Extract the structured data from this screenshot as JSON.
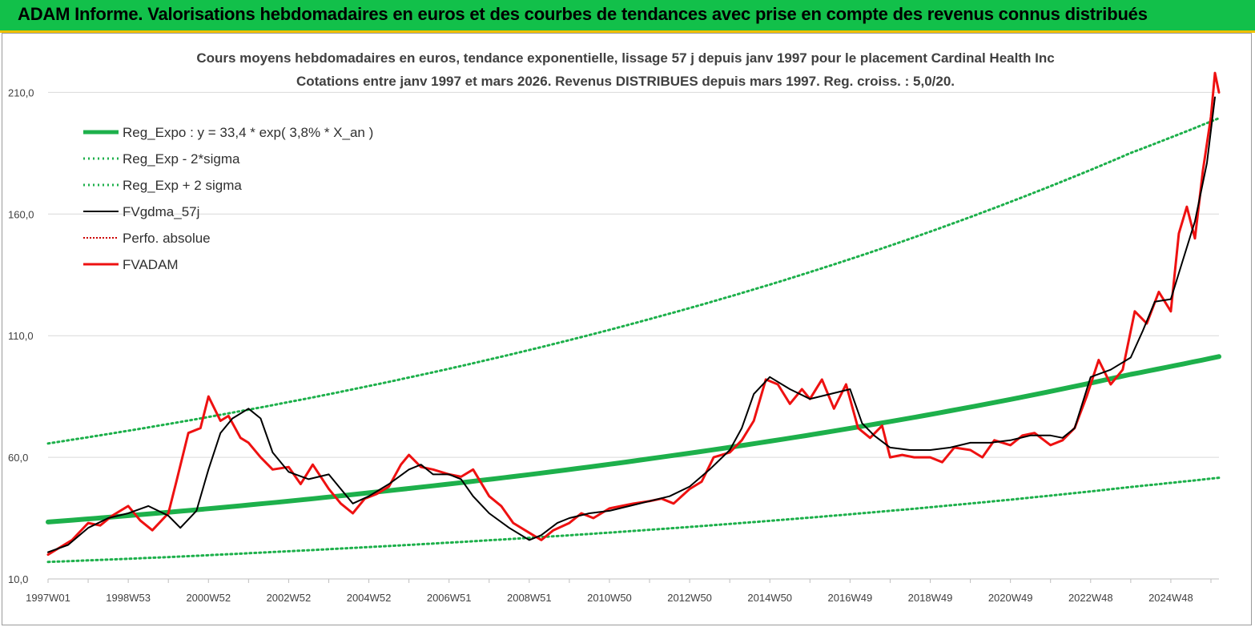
{
  "header": {
    "title": "ADAM Informe. Valorisations hebdomadaires en euros et des courbes de tendances avec prise en compte des revenus connus distribués"
  },
  "chart_data": {
    "type": "line",
    "title": "Cours moyens hebdomadaires en euros, tendance exponentielle, lissage 57 j depuis janv 1997 pour le placement Cardinal Health Inc",
    "subtitle": "Cotations entre janv 1997 et mars 2026. Revenus DISTRIBUES depuis mars 1997. Reg. croiss. : 5,0/20.",
    "ylim": [
      10,
      220
    ],
    "yticks": [
      "10,0",
      "60,0",
      "110,0",
      "160,0",
      "210,0"
    ],
    "xlim": [
      1997.0,
      2026.2
    ],
    "xticks": [
      {
        "label": "1997W01",
        "x": 1997.0
      },
      {
        "label": "1998W53",
        "x": 1999.0
      },
      {
        "label": "2000W52",
        "x": 2001.0
      },
      {
        "label": "2002W52",
        "x": 2003.0
      },
      {
        "label": "2004W52",
        "x": 2005.0
      },
      {
        "label": "2006W51",
        "x": 2007.0
      },
      {
        "label": "2008W51",
        "x": 2009.0
      },
      {
        "label": "2010W50",
        "x": 2011.0
      },
      {
        "label": "2012W50",
        "x": 2013.0
      },
      {
        "label": "2014W50",
        "x": 2015.0
      },
      {
        "label": "2016W49",
        "x": 2017.0
      },
      {
        "label": "2018W49",
        "x": 2019.0
      },
      {
        "label": "2020W49",
        "x": 2021.0
      },
      {
        "label": "2022W48",
        "x": 2023.0
      },
      {
        "label": "2024W48",
        "x": 2025.0
      }
    ],
    "grid": "horizontal",
    "legend_position": "top-left",
    "colors": {
      "trend": "#1db04b",
      "sigma": "#1db04b",
      "smooth": "#000000",
      "perfo": "#cc0000",
      "adam": "#ee1111",
      "grid": "#d9d9d9"
    },
    "series": [
      {
        "name": "Reg_Expo : y = 33,4 * exp( 3,8% *  X_an )",
        "style": "thick-solid",
        "x": [
          1997,
          2000,
          2003,
          2006,
          2009,
          2012,
          2015,
          2018,
          2021,
          2024,
          2026.2
        ],
        "y": [
          33.4,
          37.4,
          42.0,
          47.2,
          52.9,
          59.4,
          66.6,
          74.7,
          83.8,
          94.1,
          101.4
        ]
      },
      {
        "name": "Reg_Exp - 2*sigma",
        "style": "dotted",
        "x": [
          1997,
          2000,
          2003,
          2006,
          2009,
          2012,
          2015,
          2018,
          2021,
          2024,
          2026.2
        ],
        "y": [
          17.0,
          19.0,
          21.4,
          24.0,
          26.9,
          30.2,
          33.9,
          38.0,
          42.6,
          47.8,
          51.6
        ]
      },
      {
        "name": "Reg_Exp + 2 sigma",
        "style": "dotted",
        "x": [
          1997,
          2000,
          2003,
          2006,
          2009,
          2012,
          2015,
          2018,
          2021,
          2024,
          2026.2
        ],
        "y": [
          65.7,
          73.7,
          82.7,
          92.8,
          104.1,
          116.8,
          131.0,
          147.0,
          165.0,
          185.1,
          199.4
        ]
      },
      {
        "name": "FVgdma_57j",
        "style": "thin-solid",
        "x": [
          1997.0,
          1997.5,
          1998.0,
          1998.5,
          1999.0,
          1999.5,
          2000.0,
          2000.3,
          2000.7,
          2001.0,
          2001.3,
          2001.6,
          2002.0,
          2002.3,
          2002.6,
          2003.0,
          2003.5,
          2004.0,
          2004.3,
          2004.6,
          2005.0,
          2005.5,
          2006.0,
          2006.3,
          2006.6,
          2007.0,
          2007.3,
          2007.6,
          2008.0,
          2008.5,
          2009.0,
          2009.3,
          2009.7,
          2010.0,
          2010.5,
          2011.0,
          2011.5,
          2012.0,
          2012.5,
          2013.0,
          2013.5,
          2014.0,
          2014.3,
          2014.6,
          2015.0,
          2015.5,
          2016.0,
          2016.5,
          2017.0,
          2017.3,
          2017.6,
          2018.0,
          2018.5,
          2019.0,
          2019.5,
          2020.0,
          2020.5,
          2021.0,
          2021.5,
          2022.0,
          2022.3,
          2022.6,
          2023.0,
          2023.5,
          2024.0,
          2024.3,
          2024.6,
          2025.0,
          2025.3,
          2025.6,
          2025.9,
          2026.1
        ],
        "y": [
          21,
          24,
          31,
          35,
          37,
          40,
          36,
          31,
          38,
          55,
          70,
          76,
          80,
          76,
          62,
          54,
          51,
          53,
          47,
          41,
          44,
          49,
          55,
          57,
          53,
          53,
          51,
          44,
          37,
          31,
          26,
          28,
          33,
          35,
          37,
          38,
          40,
          42,
          44,
          48,
          55,
          63,
          72,
          86,
          93,
          88,
          84,
          86,
          88,
          74,
          69,
          64,
          63,
          63,
          64,
          66,
          66,
          67,
          69,
          69,
          68,
          72,
          93,
          96,
          101,
          112,
          124,
          125,
          141,
          157,
          181,
          208
        ]
      },
      {
        "name": "Perfo. absolue",
        "style": "dotted",
        "x": [],
        "y": []
      },
      {
        "name": "FVADAM",
        "style": "thick-solid",
        "x": [
          1997.0,
          1997.3,
          1997.6,
          1998.0,
          1998.3,
          1998.6,
          1999.0,
          1999.3,
          1999.6,
          2000.0,
          2000.2,
          2000.5,
          2000.8,
          2001.0,
          2001.3,
          2001.5,
          2001.8,
          2002.0,
          2002.3,
          2002.6,
          2003.0,
          2003.3,
          2003.6,
          2004.0,
          2004.3,
          2004.6,
          2004.9,
          2005.2,
          2005.5,
          2005.8,
          2006.0,
          2006.3,
          2006.6,
          2007.0,
          2007.3,
          2007.6,
          2008.0,
          2008.3,
          2008.6,
          2009.0,
          2009.3,
          2009.6,
          2010.0,
          2010.3,
          2010.6,
          2011.0,
          2011.3,
          2011.6,
          2012.0,
          2012.3,
          2012.6,
          2013.0,
          2013.3,
          2013.6,
          2014.0,
          2014.3,
          2014.6,
          2014.9,
          2015.2,
          2015.5,
          2015.8,
          2016.0,
          2016.3,
          2016.6,
          2016.9,
          2017.2,
          2017.5,
          2017.8,
          2018.0,
          2018.3,
          2018.6,
          2019.0,
          2019.3,
          2019.6,
          2020.0,
          2020.3,
          2020.6,
          2021.0,
          2021.3,
          2021.6,
          2022.0,
          2022.3,
          2022.6,
          2022.9,
          2023.2,
          2023.5,
          2023.8,
          2024.1,
          2024.4,
          2024.7,
          2025.0,
          2025.2,
          2025.4,
          2025.6,
          2025.8,
          2026.0,
          2026.1,
          2026.2
        ],
        "y": [
          20,
          23,
          26,
          33,
          32,
          36,
          40,
          34,
          30,
          37,
          50,
          70,
          72,
          85,
          75,
          77,
          68,
          66,
          60,
          55,
          56,
          49,
          57,
          47,
          41,
          37,
          43,
          45,
          48,
          57,
          61,
          56,
          55,
          53,
          52,
          55,
          44,
          40,
          33,
          29,
          26,
          30,
          33,
          37,
          35,
          39,
          40,
          41,
          42,
          43,
          41,
          47,
          50,
          60,
          62,
          67,
          75,
          92,
          90,
          82,
          88,
          84,
          92,
          80,
          90,
          72,
          68,
          73,
          60,
          61,
          60,
          60,
          58,
          64,
          63,
          60,
          67,
          65,
          69,
          70,
          65,
          67,
          72,
          85,
          100,
          90,
          96,
          120,
          115,
          128,
          120,
          152,
          163,
          150,
          178,
          200,
          218,
          210
        ]
      }
    ]
  }
}
